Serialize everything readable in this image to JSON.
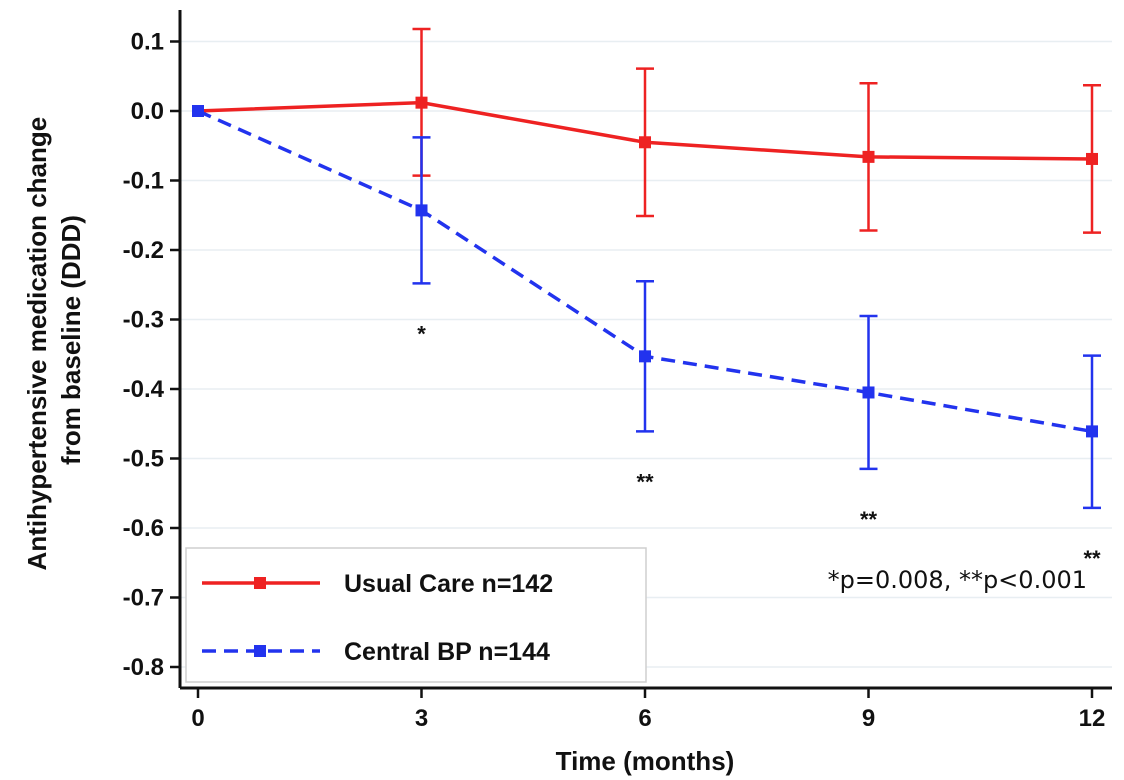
{
  "chart_data": {
    "type": "line",
    "xlabel": "Time (months)",
    "ylabel_lines": [
      "Antihypertensive medication change",
      "from baseline (DDD)"
    ],
    "x": [
      0,
      3,
      6,
      9,
      12
    ],
    "xticks": [
      "0",
      "3",
      "6",
      "9",
      "12"
    ],
    "ylim": [
      -0.82,
      0.14
    ],
    "yticks": [
      "0.1",
      "0.0",
      "-0.1",
      "-0.2",
      "-0.3",
      "-0.4",
      "-0.5",
      "-0.6",
      "-0.7",
      "-0.8"
    ],
    "ytick_values": [
      0.1,
      0.0,
      -0.1,
      -0.2,
      -0.3,
      -0.4,
      -0.5,
      -0.6,
      -0.7,
      -0.8
    ],
    "grid": "horizontal",
    "legend_position": "bottom-left",
    "series": [
      {
        "name": "Usual Care n=142",
        "color": "#ee2222",
        "dash": "solid",
        "values": [
          0.0,
          0.012,
          -0.045,
          -0.066,
          -0.069
        ],
        "lower": [
          0.0,
          -0.093,
          -0.151,
          -0.172,
          -0.175
        ],
        "upper": [
          0.0,
          0.118,
          0.061,
          0.04,
          0.037
        ]
      },
      {
        "name": "Central BP n=144",
        "color": "#2233ee",
        "dash": "dashed",
        "values": [
          0.0,
          -0.143,
          -0.353,
          -0.405,
          -0.461
        ],
        "lower": [
          0.0,
          -0.248,
          -0.461,
          -0.515,
          -0.571
        ],
        "upper": [
          0.0,
          -0.038,
          -0.245,
          -0.295,
          -0.352
        ]
      }
    ],
    "significance": [
      {
        "x": 3,
        "label": "*"
      },
      {
        "x": 6,
        "label": "**"
      },
      {
        "x": 9,
        "label": "**"
      },
      {
        "x": 12,
        "label": "**"
      }
    ],
    "annotation": "*p=0.008, **p<0.001"
  }
}
